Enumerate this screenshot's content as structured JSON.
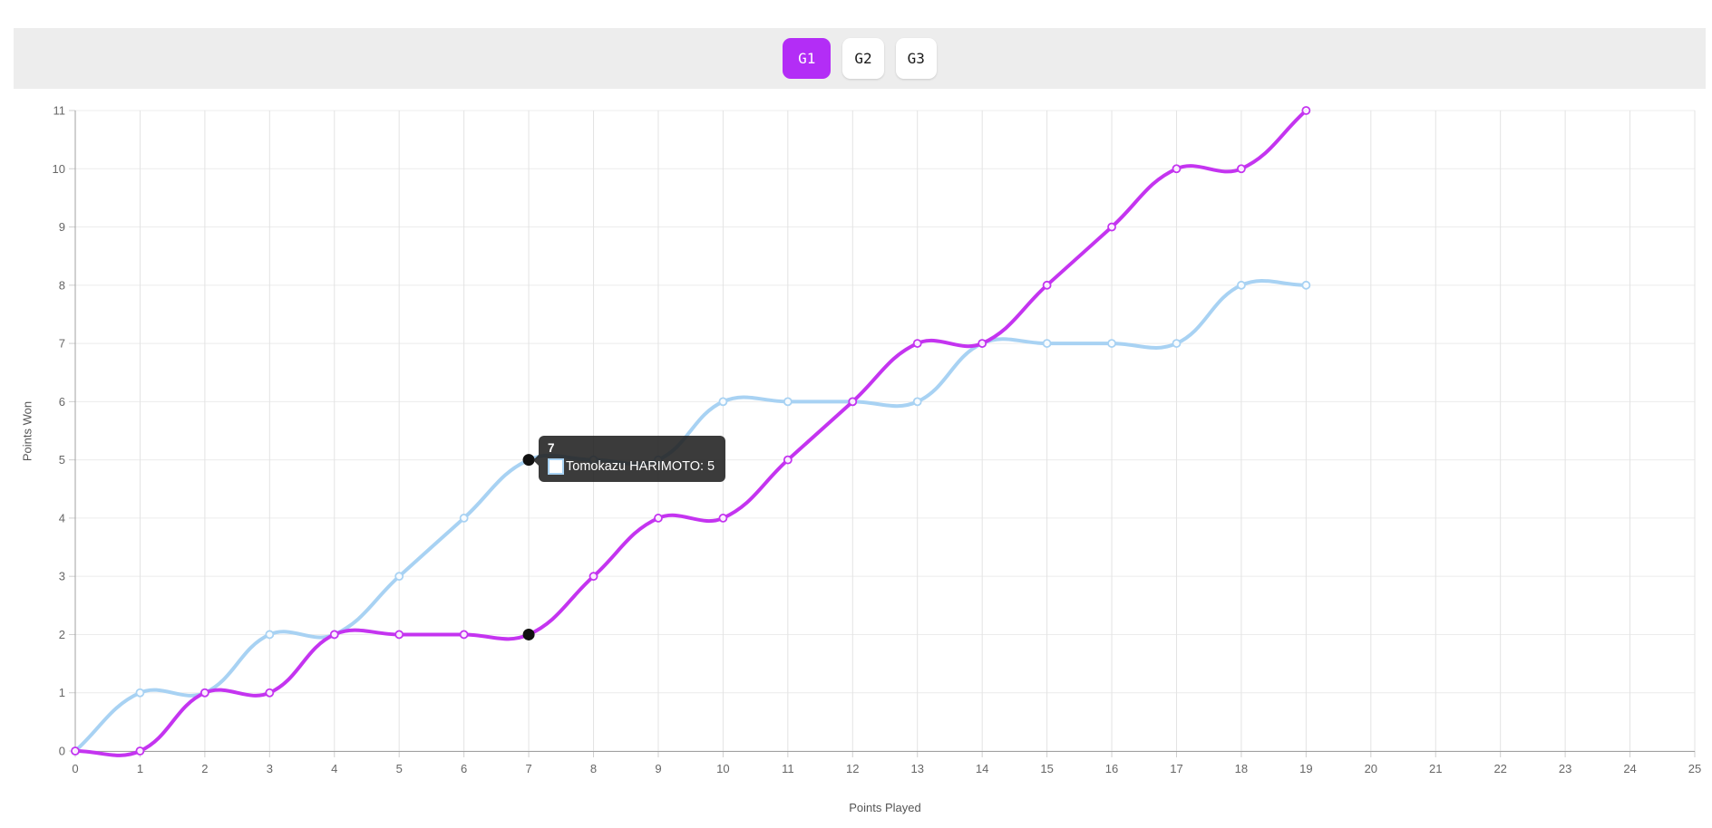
{
  "tabs": {
    "items": [
      {
        "label": "G1",
        "active": true
      },
      {
        "label": "G2",
        "active": false
      },
      {
        "label": "G3",
        "active": false
      }
    ]
  },
  "colors": {
    "accent": "#b32df6",
    "harimoto_blue": "#a8d2f3",
    "opponent_purple": "#c434f0",
    "active_point_black": "#111111",
    "grid_horizontal": "#ececec",
    "grid_vertical": "#e3e3e3",
    "axis_line": "#a0a0a0",
    "tick_text": "#666666"
  },
  "tooltip": {
    "title": "7",
    "entries": [
      {
        "label": "Tomokazu HARIMOTO: 5",
        "swatch_fill": "#ffffff",
        "swatch_border": "#a8d2f3"
      }
    ]
  },
  "chart_data": {
    "type": "line",
    "title": "",
    "xlabel": "Points Played",
    "ylabel": "Points Won",
    "xlim": [
      0,
      25
    ],
    "ylim": [
      0,
      11
    ],
    "grid": true,
    "legend": false,
    "x": [
      0,
      1,
      2,
      3,
      4,
      5,
      6,
      7,
      8,
      9,
      10,
      11,
      12,
      13,
      14,
      15,
      16,
      17,
      18,
      19
    ],
    "series": [
      {
        "name": "Tomokazu HARIMOTO",
        "color": "#a8d2f3",
        "values": [
          0,
          1,
          1,
          2,
          2,
          3,
          4,
          5,
          5,
          5,
          6,
          6,
          6,
          6,
          7,
          7,
          7,
          7,
          8,
          8
        ]
      },
      {
        "name": "",
        "color": "#c434f0",
        "values": [
          0,
          0,
          1,
          1,
          2,
          2,
          2,
          2,
          3,
          4,
          4,
          5,
          6,
          7,
          7,
          8,
          9,
          10,
          10,
          11
        ]
      }
    ],
    "x_ticks": [
      0,
      1,
      2,
      3,
      4,
      5,
      6,
      7,
      8,
      9,
      10,
      11,
      12,
      13,
      14,
      15,
      16,
      17,
      18,
      19,
      20,
      21,
      22,
      23,
      24,
      25
    ],
    "y_ticks": [
      0,
      1,
      2,
      3,
      4,
      5,
      6,
      7,
      8,
      9,
      10,
      11
    ],
    "active_points": [
      {
        "series": 0,
        "x": 7,
        "y": 5
      },
      {
        "series": 1,
        "x": 7,
        "y": 2
      }
    ]
  }
}
